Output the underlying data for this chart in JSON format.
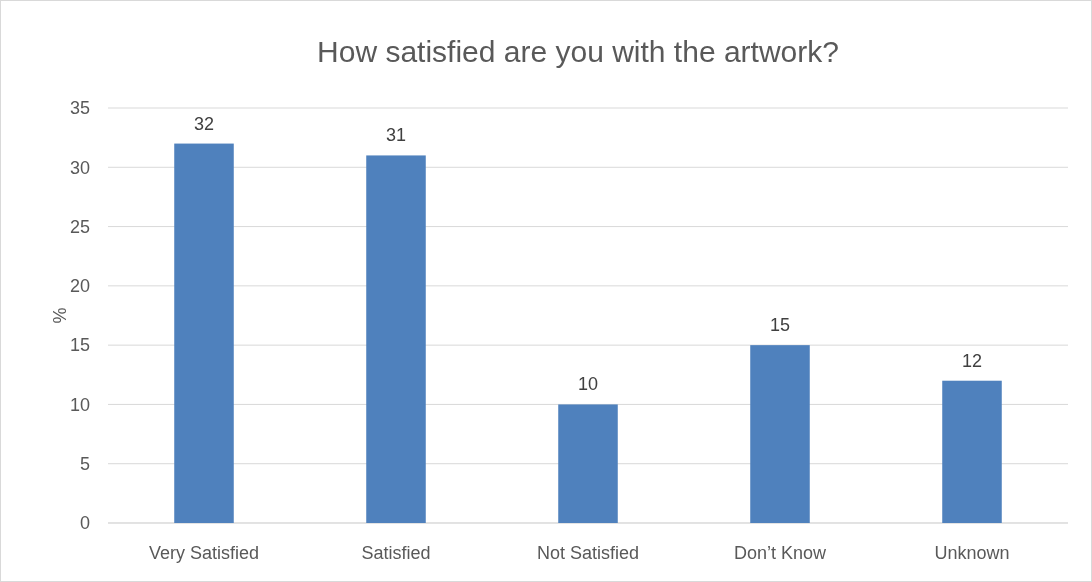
{
  "chart_data": {
    "type": "bar",
    "title": "How satisfied are you with the artwork?",
    "ylabel": "%",
    "categories": [
      "Very Satisfied",
      "Satisfied",
      "Not Satisfied",
      "Don’t Know",
      "Unknown"
    ],
    "values": [
      32,
      31,
      10,
      15,
      12
    ],
    "color": "#4f81bd",
    "ylim": [
      0,
      35
    ],
    "yticks": [
      0,
      5,
      10,
      15,
      20,
      25,
      30,
      35
    ],
    "grid": "y",
    "data_labels": true
  }
}
